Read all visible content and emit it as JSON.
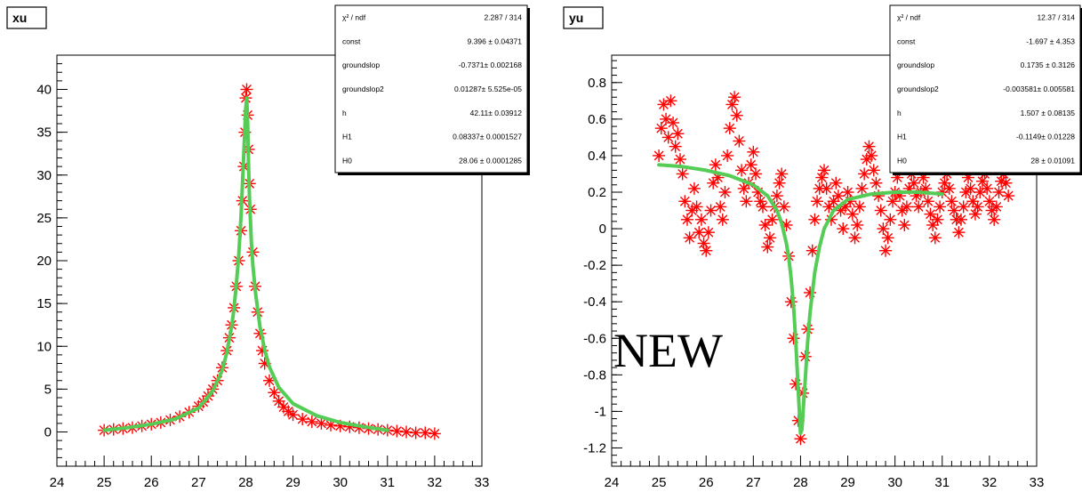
{
  "chart_data": [
    {
      "type": "scatter",
      "title": "xu",
      "xlim": [
        24,
        33
      ],
      "ylim": [
        -4,
        44
      ],
      "x_ticks": [
        24,
        25,
        26,
        27,
        28,
        29,
        30,
        31,
        32,
        33
      ],
      "y_ticks": [
        0,
        5,
        10,
        15,
        20,
        25,
        30,
        35,
        40
      ],
      "series": [
        {
          "color": "#ff0000",
          "marker": "asterisk",
          "x": [
            25.0,
            25.2,
            25.4,
            25.6,
            25.8,
            26.0,
            26.2,
            26.4,
            26.6,
            26.8,
            27.0,
            27.1,
            27.2,
            27.3,
            27.4,
            27.5,
            27.6,
            27.65,
            27.7,
            27.75,
            27.8,
            27.85,
            27.9,
            27.93,
            27.96,
            27.98,
            28.0,
            28.02,
            28.04,
            28.06,
            28.08,
            28.1,
            28.15,
            28.2,
            28.25,
            28.3,
            28.35,
            28.4,
            28.5,
            28.6,
            28.7,
            28.8,
            28.9,
            29.0,
            29.2,
            29.4,
            29.6,
            29.8,
            30.0,
            30.2,
            30.4,
            30.6,
            30.8,
            31.0,
            31.2,
            31.4,
            31.6,
            31.8,
            32.0
          ],
          "y": [
            0.2,
            0.3,
            0.4,
            0.5,
            0.7,
            0.9,
            1.1,
            1.4,
            1.8,
            2.3,
            3.0,
            3.5,
            4.2,
            5.0,
            6.0,
            7.5,
            9.5,
            11,
            12.5,
            14.5,
            17.0,
            20,
            23.5,
            27,
            31,
            35,
            39,
            40,
            37,
            33,
            29,
            26,
            21,
            17,
            14,
            11.5,
            9.5,
            8.0,
            6.0,
            4.6,
            3.6,
            2.9,
            2.4,
            2.0,
            1.5,
            1.2,
            1.0,
            0.8,
            0.7,
            0.6,
            0.5,
            0.4,
            0.3,
            0.2,
            0.1,
            0.0,
            -0.1,
            -0.1,
            -0.2
          ]
        },
        {
          "color": "#55cc55",
          "type": "line",
          "x": [
            25.0,
            25.5,
            26.0,
            26.5,
            27.0,
            27.3,
            27.5,
            27.6,
            27.7,
            27.75,
            27.8,
            27.85,
            27.9,
            27.95,
            28.0,
            28.02,
            28.04,
            28.06,
            28.08,
            28.1,
            28.12,
            28.15,
            28.2,
            28.3,
            28.4,
            28.5,
            28.7,
            29.0,
            29.5,
            30.0,
            30.5,
            31.0
          ],
          "y": [
            0.2,
            0.5,
            0.9,
            1.5,
            2.8,
            4.8,
            7.2,
            9.3,
            12.3,
            14.4,
            17.2,
            20.6,
            25.2,
            31.5,
            37.8,
            39.0,
            36,
            31,
            27,
            24.5,
            22,
            19.5,
            16.5,
            12.3,
            9.6,
            7.6,
            5.2,
            3.3,
            1.9,
            1.1,
            0.6,
            0.2
          ]
        }
      ],
      "stats": [
        {
          "name": "χ² / ndf",
          "value": "2.287 / 314"
        },
        {
          "name": "const",
          "value": "9.396 ± 0.04371"
        },
        {
          "name": "groundslop",
          "value": "-0.7371± 0.002168"
        },
        {
          "name": "groundslop2",
          "value": "0.01287± 5.525e-05"
        },
        {
          "name": "h",
          "value": "42.11± 0.03912"
        },
        {
          "name": "H1",
          "value": "0.08337± 0.0001527"
        },
        {
          "name": "H0",
          "value": "28.06 ± 0.0001285"
        }
      ]
    },
    {
      "type": "scatter",
      "title": "yu",
      "xlim": [
        24,
        33
      ],
      "ylim": [
        -1.3,
        0.95
      ],
      "x_ticks": [
        24,
        25,
        26,
        27,
        28,
        29,
        30,
        31,
        32,
        33
      ],
      "y_ticks": [
        -1.2,
        -1,
        -0.8,
        -0.6,
        -0.4,
        -0.2,
        0,
        0.2,
        0.4,
        0.6,
        0.8
      ],
      "y_tick_labels": [
        "-1.2",
        "-1",
        "-0.8",
        "-0.6",
        "-0.4",
        "-0.2",
        "0",
        "0.2",
        "0.4",
        "0.6",
        "0.8"
      ],
      "series": [
        {
          "color": "#ff0000",
          "marker": "asterisk",
          "x": [
            25.0,
            25.05,
            25.1,
            25.15,
            25.2,
            25.25,
            25.3,
            25.35,
            25.4,
            25.45,
            25.5,
            25.55,
            25.6,
            25.65,
            25.7,
            25.75,
            25.8,
            25.85,
            25.9,
            25.95,
            26.0,
            26.05,
            26.1,
            26.15,
            26.2,
            26.25,
            26.3,
            26.35,
            26.4,
            26.45,
            26.5,
            26.55,
            26.6,
            26.65,
            26.7,
            26.75,
            26.8,
            26.85,
            26.9,
            26.95,
            27.0,
            27.05,
            27.1,
            27.15,
            27.2,
            27.25,
            27.3,
            27.35,
            27.4,
            27.45,
            27.5,
            27.55,
            27.6,
            27.65,
            27.7,
            27.75,
            27.8,
            27.85,
            27.9,
            27.95,
            28.0,
            28.05,
            28.1,
            28.15,
            28.2,
            28.25,
            28.3,
            28.35,
            28.4,
            28.45,
            28.5,
            28.55,
            28.6,
            28.65,
            28.7,
            28.75,
            28.8,
            28.85,
            28.9,
            28.95,
            29.0,
            29.05,
            29.1,
            29.15,
            29.2,
            29.25,
            29.3,
            29.35,
            29.4,
            29.45,
            29.5,
            29.55,
            29.6,
            29.65,
            29.7,
            29.75,
            29.8,
            29.85,
            29.9,
            29.95,
            30.0,
            30.05,
            30.1,
            30.15,
            30.2,
            30.25,
            30.3,
            30.35,
            30.4,
            30.45,
            30.5,
            30.55,
            30.6,
            30.65,
            30.7,
            30.75,
            30.8,
            30.85,
            30.9,
            30.95,
            31.0,
            31.05,
            31.1,
            31.15,
            31.2,
            31.25,
            31.3,
            31.35,
            31.4,
            31.45,
            31.5,
            31.55,
            31.6,
            31.65,
            31.7,
            31.75,
            31.8,
            31.85,
            31.9,
            31.95,
            32.0,
            32.05,
            32.1,
            32.15,
            32.2,
            32.25,
            32.3,
            32.35,
            32.4
          ],
          "y": [
            0.4,
            0.55,
            0.68,
            0.6,
            0.5,
            0.7,
            0.58,
            0.45,
            0.52,
            0.38,
            0.3,
            0.15,
            0.05,
            -0.05,
            0.1,
            0.22,
            0.12,
            -0.02,
            0.05,
            -0.08,
            -0.12,
            -0.02,
            0.1,
            0.25,
            0.35,
            0.28,
            0.12,
            0.05,
            0.2,
            0.4,
            0.55,
            0.68,
            0.72,
            0.62,
            0.48,
            0.32,
            0.22,
            0.15,
            0.25,
            0.35,
            0.42,
            0.3,
            0.2,
            0.15,
            0.12,
            0.02,
            -0.1,
            -0.05,
            0.05,
            0.12,
            0.18,
            0.25,
            0.3,
            0.12,
            0.02,
            -0.15,
            -0.4,
            -0.6,
            -0.85,
            -1.05,
            -1.15,
            -0.9,
            -0.7,
            -0.55,
            -0.35,
            -0.12,
            0.05,
            0.15,
            0.22,
            0.28,
            0.32,
            0.22,
            0.12,
            0.05,
            0.15,
            0.25,
            0.18,
            0.1,
            0.0,
            0.12,
            0.2,
            0.15,
            0.08,
            -0.05,
            0.02,
            0.12,
            0.22,
            0.3,
            0.38,
            0.45,
            0.4,
            0.32,
            0.25,
            0.18,
            0.1,
            0.0,
            -0.12,
            -0.05,
            0.05,
            0.15,
            0.2,
            0.28,
            0.18,
            0.1,
            0.02,
            0.12,
            0.22,
            0.3,
            0.25,
            0.18,
            0.12,
            0.2,
            0.28,
            0.22,
            0.15,
            0.08,
            0.02,
            -0.05,
            0.05,
            0.12,
            0.2,
            0.25,
            0.3,
            0.22,
            0.15,
            0.1,
            0.05,
            -0.02,
            0.05,
            0.12,
            0.2,
            0.28,
            0.22,
            0.15,
            0.08,
            0.12,
            0.2,
            0.26,
            0.3,
            0.22,
            0.15,
            0.1,
            0.05,
            0.12,
            0.2,
            0.26,
            0.3,
            0.25,
            0.18
          ]
        },
        {
          "color": "#55cc55",
          "type": "line",
          "x": [
            25.0,
            25.5,
            26.0,
            26.5,
            27.0,
            27.3,
            27.5,
            27.6,
            27.7,
            27.75,
            27.8,
            27.85,
            27.9,
            27.95,
            28.0,
            28.03,
            28.06,
            28.1,
            28.15,
            28.2,
            28.3,
            28.4,
            28.5,
            28.7,
            29.0,
            29.5,
            30.0,
            30.5,
            31.0
          ],
          "y": [
            0.35,
            0.34,
            0.32,
            0.29,
            0.24,
            0.18,
            0.1,
            0.03,
            -0.08,
            -0.16,
            -0.27,
            -0.42,
            -0.62,
            -0.88,
            -1.12,
            -1.1,
            -0.98,
            -0.82,
            -0.62,
            -0.46,
            -0.24,
            -0.1,
            0.0,
            0.1,
            0.16,
            0.19,
            0.2,
            0.2,
            0.19
          ]
        }
      ],
      "stats": [
        {
          "name": "χ² / ndf",
          "value": "12.37 / 314"
        },
        {
          "name": "const",
          "value": "-1.697 ± 4.353"
        },
        {
          "name": "groundslop",
          "value": "0.1735 ± 0.3126"
        },
        {
          "name": "groundslop2",
          "value": "-0.003581± 0.005581"
        },
        {
          "name": "h",
          "value": "1.507 ± 0.08135"
        },
        {
          "name": "H1",
          "value": "-0.1149± 0.01228"
        },
        {
          "name": "H0",
          "value": "28 ± 0.01091"
        }
      ],
      "overlay_text": "NEW"
    }
  ]
}
